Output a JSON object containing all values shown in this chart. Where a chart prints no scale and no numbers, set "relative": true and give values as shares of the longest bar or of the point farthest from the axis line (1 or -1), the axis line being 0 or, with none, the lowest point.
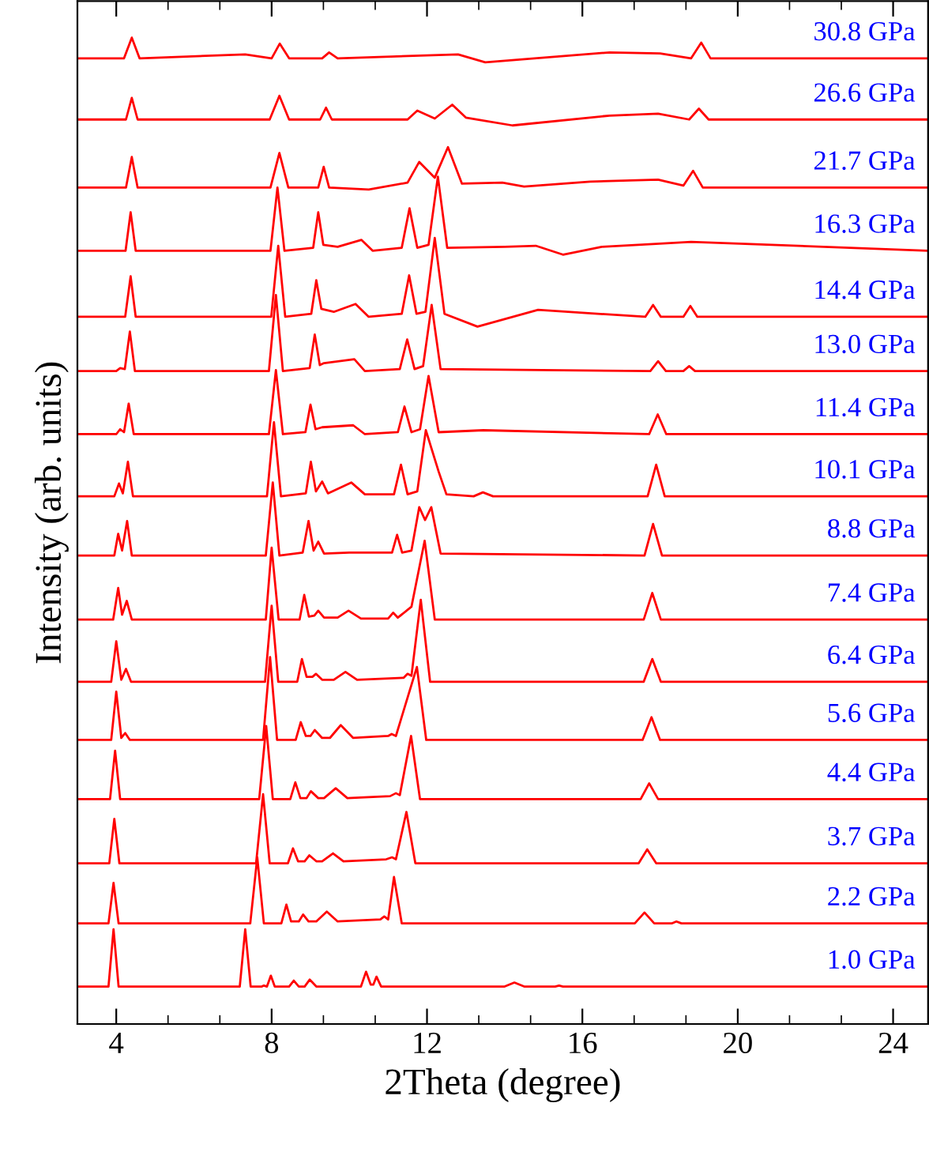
{
  "chart_data": {
    "type": "line",
    "relative": true,
    "xlabel": "2Theta (degree)",
    "ylabel": "Intensity (arb. units)",
    "xlim": [
      3,
      24.9
    ],
    "xticks": [
      4,
      {
        "value": 5.333,
        "label": null
      },
      {
        "value": 6.667,
        "label": null
      },
      8,
      {
        "value": 9.333,
        "label": null
      },
      {
        "value": 10.667,
        "label": null
      },
      12,
      {
        "value": 13.333,
        "label": null
      },
      {
        "value": 14.667,
        "label": null
      },
      16,
      {
        "value": 17.333,
        "label": null
      },
      {
        "value": 18.667,
        "label": null
      },
      20,
      {
        "value": 21.333,
        "label": null
      },
      {
        "value": 22.667,
        "label": null
      },
      24
    ],
    "grid": false,
    "legend": false,
    "marker": "none",
    "line_style": "solid",
    "series": [
      {
        "name": "1.0 GPa",
        "color": "#ff0000",
        "x": [
          3.0,
          3.8,
          3.93,
          4.06,
          6.5,
          7.18,
          7.32,
          7.46,
          7.75,
          7.8,
          7.88,
          7.98,
          8.08,
          8.45,
          8.57,
          8.7,
          8.85,
          8.98,
          9.15,
          10.3,
          10.43,
          10.55,
          10.62,
          10.7,
          10.82,
          14.0,
          14.25,
          14.5,
          15.3,
          15.4,
          15.5,
          24.9
        ],
        "values": [
          0.038,
          0.038,
          0.096,
          0.038,
          0.038,
          0.038,
          0.096,
          0.038,
          0.038,
          0.039,
          0.038,
          0.049,
          0.038,
          0.038,
          0.044,
          0.038,
          0.038,
          0.045,
          0.038,
          0.038,
          0.053,
          0.04,
          0.04,
          0.048,
          0.038,
          0.038,
          0.042,
          0.038,
          0.038,
          0.039,
          0.038,
          0.038
        ]
      },
      {
        "name": "2.2 GPa",
        "color": "#ff0000",
        "x": [
          3.0,
          3.8,
          3.93,
          4.06,
          7.45,
          7.63,
          7.8,
          8.25,
          8.38,
          8.5,
          8.7,
          8.81,
          8.95,
          9.15,
          9.42,
          9.7,
          10.8,
          10.9,
          11.0,
          11.15,
          11.35,
          17.35,
          17.6,
          17.85,
          18.3,
          18.42,
          18.55,
          24.9
        ],
        "values": [
          0.102,
          0.102,
          0.143,
          0.102,
          0.102,
          0.169,
          0.102,
          0.102,
          0.121,
          0.104,
          0.104,
          0.111,
          0.104,
          0.104,
          0.114,
          0.104,
          0.106,
          0.109,
          0.106,
          0.149,
          0.102,
          0.102,
          0.113,
          0.102,
          0.102,
          0.104,
          0.102,
          0.102
        ]
      },
      {
        "name": "3.7 GPa",
        "color": "#ff0000",
        "x": [
          3.0,
          3.82,
          3.95,
          4.08,
          7.6,
          7.78,
          7.95,
          8.42,
          8.55,
          8.68,
          8.85,
          8.97,
          9.15,
          9.3,
          9.58,
          9.85,
          10.95,
          11.1,
          11.2,
          11.47,
          11.7,
          17.45,
          17.67,
          17.9,
          24.9
        ],
        "values": [
          0.163,
          0.163,
          0.208,
          0.163,
          0.163,
          0.233,
          0.163,
          0.163,
          0.178,
          0.165,
          0.165,
          0.171,
          0.165,
          0.165,
          0.173,
          0.165,
          0.167,
          0.169,
          0.167,
          0.215,
          0.163,
          0.163,
          0.177,
          0.163,
          0.163
        ]
      },
      {
        "name": "4.4 GPa",
        "color": "#ff0000",
        "x": [
          3.0,
          3.84,
          3.97,
          4.1,
          7.68,
          7.86,
          8.03,
          8.48,
          8.61,
          8.74,
          8.9,
          9.01,
          9.2,
          9.35,
          9.65,
          9.95,
          11.05,
          11.2,
          11.3,
          11.59,
          11.82,
          17.5,
          17.72,
          17.95,
          24.9
        ],
        "values": [
          0.228,
          0.228,
          0.277,
          0.228,
          0.228,
          0.302,
          0.228,
          0.228,
          0.245,
          0.229,
          0.229,
          0.236,
          0.229,
          0.229,
          0.239,
          0.229,
          0.231,
          0.234,
          0.232,
          0.292,
          0.228,
          0.228,
          0.244,
          0.228,
          0.228
        ]
      },
      {
        "name": "5.6 GPa",
        "color": "#ff0000",
        "x": [
          3.0,
          3.87,
          4.0,
          4.13,
          4.23,
          4.35,
          7.78,
          7.96,
          8.14,
          8.62,
          8.75,
          8.88,
          9.0,
          9.11,
          9.3,
          9.5,
          9.78,
          10.1,
          11.0,
          11.09,
          11.2,
          11.74,
          11.98,
          17.55,
          17.78,
          18.0,
          24.9
        ],
        "values": [
          0.288,
          0.288,
          0.337,
          0.29,
          0.295,
          0.288,
          0.288,
          0.372,
          0.288,
          0.288,
          0.306,
          0.292,
          0.292,
          0.298,
          0.29,
          0.29,
          0.303,
          0.29,
          0.292,
          0.294,
          0.292,
          0.362,
          0.288,
          0.288,
          0.311,
          0.288,
          0.288
        ]
      },
      {
        "name": "6.4 GPa",
        "color": "#ff0000",
        "x": [
          3.0,
          3.87,
          4.0,
          4.13,
          4.25,
          4.38,
          7.83,
          8.0,
          8.17,
          8.66,
          8.78,
          8.9,
          9.05,
          9.14,
          9.3,
          9.6,
          9.9,
          10.2,
          11.4,
          11.5,
          11.6,
          11.84,
          12.08,
          17.58,
          17.8,
          18.02,
          24.9
        ],
        "values": [
          0.347,
          0.347,
          0.388,
          0.349,
          0.36,
          0.347,
          0.347,
          0.424,
          0.347,
          0.347,
          0.37,
          0.352,
          0.352,
          0.355,
          0.349,
          0.349,
          0.357,
          0.349,
          0.351,
          0.355,
          0.353,
          0.43,
          0.347,
          0.347,
          0.37,
          0.347,
          0.347
        ]
      },
      {
        "name": "7.4 GPa",
        "color": "#ff0000",
        "x": [
          3.0,
          3.92,
          4.05,
          4.15,
          4.27,
          4.4,
          7.85,
          8.0,
          8.18,
          8.72,
          8.84,
          8.96,
          9.1,
          9.2,
          9.35,
          9.7,
          9.98,
          10.3,
          11.0,
          11.13,
          11.25,
          11.6,
          11.94,
          12.2,
          17.58,
          17.8,
          18.02,
          24.9
        ],
        "values": [
          0.41,
          0.41,
          0.442,
          0.415,
          0.429,
          0.41,
          0.41,
          0.483,
          0.41,
          0.41,
          0.435,
          0.413,
          0.414,
          0.419,
          0.412,
          0.412,
          0.419,
          0.411,
          0.411,
          0.417,
          0.412,
          0.423,
          0.49,
          0.41,
          0.41,
          0.437,
          0.41,
          0.41
        ]
      },
      {
        "name": "8.8 GPa",
        "color": "#ff0000",
        "x": [
          3.0,
          3.95,
          4.05,
          4.15,
          4.28,
          4.4,
          7.85,
          8.03,
          8.2,
          8.8,
          8.95,
          9.08,
          9.2,
          9.35,
          10.0,
          11.1,
          11.23,
          11.36,
          11.6,
          11.8,
          11.95,
          12.11,
          12.35,
          17.6,
          17.82,
          18.05,
          24.9
        ],
        "values": [
          0.475,
          0.475,
          0.497,
          0.48,
          0.51,
          0.475,
          0.475,
          0.549,
          0.475,
          0.478,
          0.51,
          0.48,
          0.489,
          0.477,
          0.478,
          0.478,
          0.496,
          0.478,
          0.48,
          0.524,
          0.511,
          0.524,
          0.477,
          0.475,
          0.507,
          0.475,
          0.475
        ]
      },
      {
        "name": "10.1 GPa",
        "color": "#ff0000",
        "x": [
          3.0,
          3.95,
          4.07,
          4.17,
          4.3,
          4.43,
          7.88,
          8.06,
          8.24,
          8.88,
          9.01,
          9.14,
          9.3,
          9.45,
          10.05,
          10.4,
          11.15,
          11.33,
          11.5,
          11.75,
          11.97,
          12.3,
          12.5,
          13.2,
          13.44,
          13.7,
          17.68,
          17.9,
          18.12,
          24.9
        ],
        "values": [
          0.535,
          0.535,
          0.548,
          0.538,
          0.57,
          0.535,
          0.535,
          0.61,
          0.535,
          0.538,
          0.57,
          0.54,
          0.55,
          0.538,
          0.549,
          0.537,
          0.537,
          0.567,
          0.537,
          0.54,
          0.602,
          0.56,
          0.537,
          0.535,
          0.539,
          0.535,
          0.535,
          0.567,
          0.535,
          0.535
        ]
      },
      {
        "name": "11.4 GPa",
        "color": "#ff0000",
        "x": [
          3.0,
          4.0,
          4.1,
          4.2,
          4.32,
          4.45,
          7.93,
          8.11,
          8.29,
          8.87,
          9.0,
          9.13,
          9.3,
          10.1,
          10.4,
          11.25,
          11.42,
          11.6,
          11.82,
          12.04,
          12.3,
          13.45,
          17.72,
          17.94,
          18.16,
          24.9
        ],
        "values": [
          0.598,
          0.598,
          0.603,
          0.6,
          0.629,
          0.598,
          0.598,
          0.663,
          0.598,
          0.6,
          0.628,
          0.603,
          0.605,
          0.607,
          0.598,
          0.6,
          0.626,
          0.6,
          0.603,
          0.657,
          0.6,
          0.602,
          0.598,
          0.618,
          0.598,
          0.598
        ]
      },
      {
        "name": "13.0 GPa",
        "color": "#ff0000",
        "x": [
          3.0,
          4.0,
          4.1,
          4.22,
          4.35,
          4.48,
          7.93,
          8.11,
          8.29,
          8.98,
          9.11,
          9.24,
          9.35,
          10.13,
          10.4,
          11.3,
          11.49,
          11.68,
          11.9,
          12.12,
          12.35,
          17.75,
          17.95,
          18.15,
          18.6,
          18.75,
          18.9,
          24.9
        ],
        "values": [
          0.662,
          0.662,
          0.665,
          0.664,
          0.702,
          0.662,
          0.662,
          0.739,
          0.662,
          0.665,
          0.699,
          0.668,
          0.67,
          0.674,
          0.662,
          0.664,
          0.694,
          0.664,
          0.667,
          0.729,
          0.664,
          0.662,
          0.672,
          0.662,
          0.662,
          0.667,
          0.662,
          0.662
        ]
      },
      {
        "name": "14.4 GPa",
        "color": "#ff0000",
        "x": [
          3.0,
          4.23,
          4.37,
          4.5,
          7.99,
          8.17,
          8.35,
          9.02,
          9.15,
          9.28,
          9.6,
          10.16,
          10.5,
          11.35,
          11.54,
          11.73,
          11.96,
          12.2,
          12.45,
          13.3,
          14.86,
          17.62,
          17.82,
          18.02,
          18.6,
          18.78,
          18.96,
          24.9
        ],
        "values": [
          0.717,
          0.717,
          0.758,
          0.717,
          0.717,
          0.789,
          0.717,
          0.72,
          0.754,
          0.725,
          0.722,
          0.73,
          0.717,
          0.72,
          0.759,
          0.72,
          0.722,
          0.797,
          0.72,
          0.707,
          0.724,
          0.717,
          0.729,
          0.717,
          0.717,
          0.728,
          0.717,
          0.717
        ]
      },
      {
        "name": "16.3 GPa",
        "color": "#ff0000",
        "x": [
          3.0,
          4.24,
          4.37,
          4.5,
          7.97,
          8.15,
          8.33,
          9.07,
          9.2,
          9.33,
          9.7,
          10.31,
          10.6,
          11.35,
          11.55,
          11.75,
          12.04,
          12.28,
          12.52,
          14.0,
          14.8,
          15.5,
          16.5,
          17.9,
          18.8,
          24.9
        ],
        "values": [
          0.784,
          0.784,
          0.823,
          0.784,
          0.784,
          0.848,
          0.784,
          0.787,
          0.823,
          0.79,
          0.788,
          0.795,
          0.784,
          0.787,
          0.827,
          0.787,
          0.79,
          0.859,
          0.787,
          0.788,
          0.789,
          0.78,
          0.788,
          0.791,
          0.793,
          0.784
        ]
      },
      {
        "name": "21.7 GPa",
        "color": "#ff0000",
        "x": [
          3.0,
          4.25,
          4.4,
          4.55,
          7.97,
          8.2,
          8.43,
          9.2,
          9.34,
          9.48,
          10.5,
          11.5,
          11.8,
          12.2,
          12.54,
          12.9,
          13.94,
          14.5,
          16.2,
          17.95,
          18.6,
          18.85,
          19.1,
          24.9
        ],
        "values": [
          0.848,
          0.848,
          0.879,
          0.848,
          0.848,
          0.883,
          0.848,
          0.848,
          0.869,
          0.848,
          0.846,
          0.853,
          0.874,
          0.858,
          0.889,
          0.852,
          0.853,
          0.849,
          0.854,
          0.856,
          0.85,
          0.865,
          0.848,
          0.848
        ]
      },
      {
        "name": "26.6 GPa",
        "color": "#ff0000",
        "x": [
          3.0,
          4.25,
          4.4,
          4.55,
          7.95,
          8.2,
          8.45,
          9.25,
          9.4,
          9.55,
          11.5,
          11.75,
          12.2,
          12.65,
          13.0,
          13.3,
          14.2,
          16.7,
          17.95,
          18.75,
          19.0,
          19.25,
          20.0,
          24.9
        ],
        "values": [
          0.917,
          0.917,
          0.939,
          0.917,
          0.917,
          0.941,
          0.917,
          0.917,
          0.929,
          0.917,
          0.917,
          0.926,
          0.918,
          0.932,
          0.919,
          0.917,
          0.911,
          0.921,
          0.923,
          0.917,
          0.928,
          0.917,
          0.917,
          0.917
        ]
      },
      {
        "name": "30.8 GPa",
        "color": "#ff0000",
        "x": [
          3.0,
          4.2,
          4.4,
          4.6,
          7.32,
          8.0,
          8.21,
          8.45,
          9.3,
          9.48,
          9.7,
          12.8,
          13.5,
          16.7,
          18.0,
          18.8,
          19.06,
          19.3,
          20.8,
          24.9
        ],
        "values": [
          0.979,
          0.979,
          1.0,
          0.979,
          0.983,
          0.979,
          0.994,
          0.979,
          0.979,
          0.985,
          0.979,
          0.983,
          0.975,
          0.985,
          0.984,
          0.979,
          0.995,
          0.979,
          0.979,
          0.979
        ]
      }
    ]
  }
}
